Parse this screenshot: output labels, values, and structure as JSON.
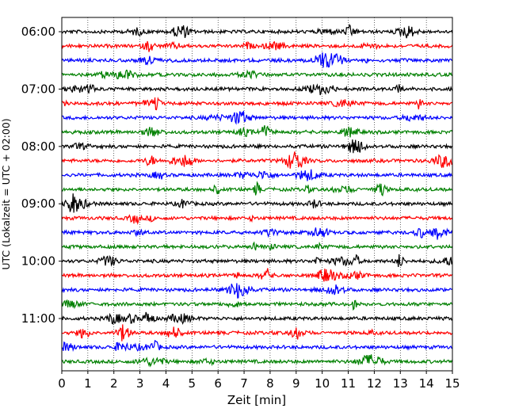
{
  "chart_data": {
    "type": "line",
    "subtype": "helicorder-seismogram",
    "title": "",
    "xlabel": "Zeit  [min]",
    "ylabel": "UTC (Lokalzeit = UTC + 02:00)",
    "xlim": [
      0,
      15
    ],
    "x_ticks": [
      0,
      1,
      2,
      3,
      4,
      5,
      6,
      7,
      8,
      9,
      10,
      11,
      12,
      13,
      14,
      15
    ],
    "y_tick_labels": [
      "06:00",
      "07:00",
      "08:00",
      "09:00",
      "10:00",
      "11:00"
    ],
    "trace_start": "06:00",
    "minutes_per_trace": 15,
    "trace_count": 24,
    "trace_colors": [
      "#000000",
      "#ff0000",
      "#0000ff",
      "#008000"
    ],
    "grid": {
      "vertical": true,
      "style": "dotted",
      "every_minutes": 1
    },
    "legend": "none"
  }
}
